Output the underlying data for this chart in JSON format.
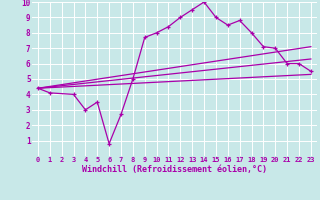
{
  "background_color": "#c8e8e8",
  "grid_color": "#b0d8d8",
  "line_color": "#aa00aa",
  "xlabel": "Windchill (Refroidissement éolien,°C)",
  "xlim": [
    -0.5,
    23.5
  ],
  "ylim": [
    0,
    10
  ],
  "xticks": [
    0,
    1,
    2,
    3,
    4,
    5,
    6,
    7,
    8,
    9,
    10,
    11,
    12,
    13,
    14,
    15,
    16,
    17,
    18,
    19,
    20,
    21,
    22,
    23
  ],
  "yticks": [
    1,
    2,
    3,
    4,
    5,
    6,
    7,
    8,
    9,
    10
  ],
  "series1_x": [
    0,
    1,
    3,
    4,
    5,
    6,
    7,
    8,
    9,
    10,
    11,
    12,
    13,
    14,
    15,
    16,
    17,
    18,
    19,
    20,
    21,
    22,
    23
  ],
  "series1_y": [
    4.4,
    4.1,
    4.0,
    3.0,
    3.5,
    0.8,
    2.7,
    5.0,
    7.7,
    8.0,
    8.4,
    9.0,
    9.5,
    10.0,
    9.0,
    8.5,
    8.8,
    8.0,
    7.1,
    7.0,
    6.0,
    6.0,
    5.5
  ],
  "series2_x": [
    0,
    23
  ],
  "series2_y": [
    4.4,
    5.3
  ],
  "series3_x": [
    0,
    23
  ],
  "series3_y": [
    4.4,
    6.3
  ],
  "series4_x": [
    0,
    23
  ],
  "series4_y": [
    4.4,
    7.1
  ]
}
